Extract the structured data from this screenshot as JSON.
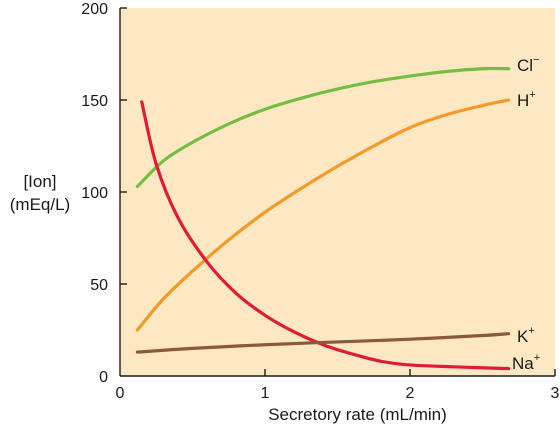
{
  "chart_data": {
    "type": "line",
    "title": "",
    "xlabel": "Secretory rate (mL/min)",
    "ylabel_lines": [
      "[Ion]",
      "(mEq/L)"
    ],
    "xlim": [
      0,
      3
    ],
    "ylim": [
      0,
      200
    ],
    "x_ticks": [
      0,
      1,
      2,
      3
    ],
    "y_ticks": [
      0,
      50,
      100,
      150,
      200
    ],
    "x_tick_labels": [
      "0",
      "1",
      "2",
      "3"
    ],
    "y_tick_labels": [
      "0",
      "50",
      "100",
      "150",
      "200"
    ],
    "grid": false,
    "plot_background": "#fde8c4",
    "legend": "none (series labeled at line ends)",
    "series": [
      {
        "name": "Cl",
        "label_base": "Cl",
        "label_sup": "−",
        "color": "#77bd43",
        "x": [
          0.12,
          0.3,
          0.5,
          0.75,
          1.0,
          1.25,
          1.5,
          1.75,
          2.0,
          2.25,
          2.5,
          2.68
        ],
        "y": [
          103,
          117,
          127,
          137,
          145,
          151,
          156,
          160,
          163,
          165.5,
          167,
          167
        ]
      },
      {
        "name": "H",
        "label_base": "H",
        "label_sup": "+",
        "color": "#f39a28",
        "x": [
          0.12,
          0.3,
          0.5,
          0.75,
          1.0,
          1.25,
          1.5,
          1.75,
          2.0,
          2.25,
          2.5,
          2.68
        ],
        "y": [
          25,
          42,
          57,
          74,
          89,
          102,
          114,
          125,
          135,
          142,
          147,
          150
        ]
      },
      {
        "name": "Na",
        "label_base": "Na",
        "label_sup": "+",
        "color": "#e21a3a",
        "x": [
          0.15,
          0.25,
          0.4,
          0.6,
          0.8,
          1.0,
          1.2,
          1.4,
          1.6,
          1.8,
          2.0,
          2.3,
          2.68
        ],
        "y": [
          149,
          115,
          86,
          62,
          45,
          33,
          24,
          17,
          12,
          8,
          6,
          5,
          4
        ]
      },
      {
        "name": "K",
        "label_base": "K",
        "label_sup": "+",
        "color": "#8a5a3b",
        "x": [
          0.12,
          0.5,
          1.0,
          1.5,
          2.0,
          2.5,
          2.68
        ],
        "y": [
          13,
          15,
          17,
          18.5,
          20,
          22,
          23
        ]
      }
    ]
  }
}
